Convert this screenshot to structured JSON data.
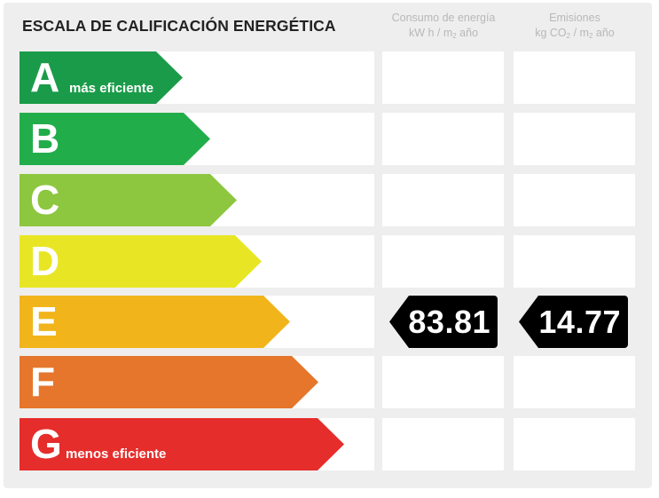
{
  "title": "ESCALA DE CALIFICACIÓN ENERGÉTICA",
  "columns": {
    "consumo": {
      "line1": "Consumo de energía",
      "line2_pre": "kW h / m",
      "line2_sub": "2",
      "line2_post": " año"
    },
    "emisiones": {
      "line1": "Emisiones",
      "line2_pre": "kg CO",
      "line2_sub": "2",
      "line2_mid": " / m",
      "line2_sub2": "2",
      "line2_post": " año"
    }
  },
  "ratings": [
    {
      "letter": "A",
      "sublabel": "más eficiente",
      "color": "#1a9b49"
    },
    {
      "letter": "B",
      "sublabel": "",
      "color": "#22ad4b"
    },
    {
      "letter": "C",
      "sublabel": "",
      "color": "#8dc63f"
    },
    {
      "letter": "D",
      "sublabel": "",
      "color": "#e8e624"
    },
    {
      "letter": "E",
      "sublabel": "",
      "color": "#f1b41a"
    },
    {
      "letter": "F",
      "sublabel": "",
      "color": "#e5762b"
    },
    {
      "letter": "G",
      "sublabel": "menos eficiente",
      "color": "#e52d2b"
    }
  ],
  "current": {
    "rating": "E",
    "consumo_value": "83.81",
    "emisiones_value": "14.77"
  }
}
